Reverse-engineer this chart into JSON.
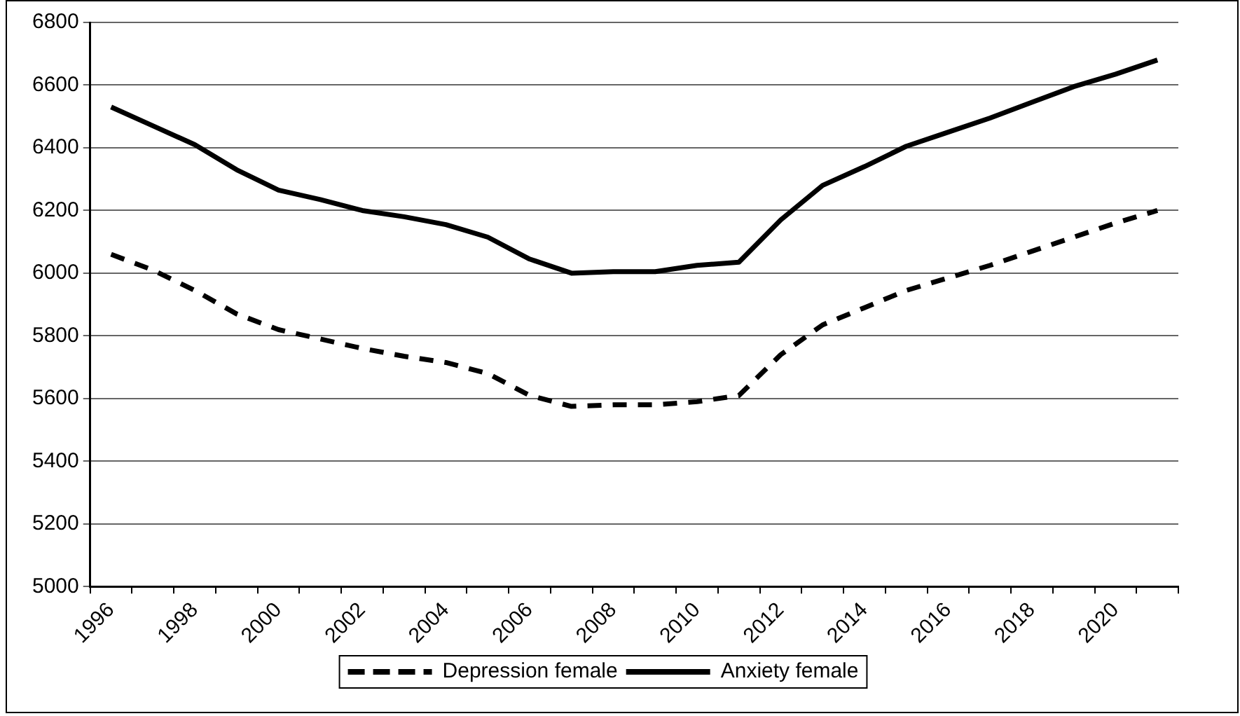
{
  "chart_data": {
    "type": "line",
    "categories": [
      "1996",
      null,
      "1998",
      null,
      "2000",
      null,
      "2002",
      null,
      "2004",
      null,
      "2006",
      null,
      "2008",
      null,
      "2010",
      null,
      "2012",
      null,
      "2014",
      null,
      "2016",
      null,
      "2018",
      null,
      "2020",
      null
    ],
    "series": [
      {
        "name": "Depression female",
        "color": "#000000",
        "line_style": "dashed",
        "values": [
          6060,
          6010,
          5945,
          5870,
          5820,
          5790,
          5760,
          5735,
          5715,
          5680,
          5610,
          5575,
          5580,
          5580,
          5590,
          5610,
          5740,
          5835,
          5890,
          5945,
          5985,
          6025,
          6070,
          6115,
          6160,
          6200
        ]
      },
      {
        "name": "Anxiety female",
        "color": "#000000",
        "line_style": "solid",
        "values": [
          6530,
          6470,
          6410,
          6330,
          6265,
          6235,
          6200,
          6180,
          6155,
          6115,
          6045,
          6000,
          6005,
          6005,
          6025,
          6035,
          6170,
          6280,
          6340,
          6405,
          6450,
          6495,
          6545,
          6595,
          6635,
          6680
        ]
      }
    ],
    "ylim": [
      5000,
      6800
    ],
    "yticks": [
      5000,
      5200,
      5400,
      5600,
      5800,
      6000,
      6200,
      6400,
      6600,
      6800
    ],
    "grid": "y",
    "legend": "bottom",
    "marker": "none"
  }
}
